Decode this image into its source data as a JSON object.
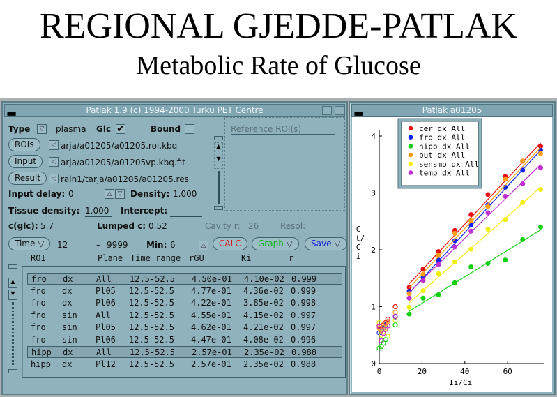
{
  "page": {
    "title": "REGIONAL GJEDDE-PATLAK",
    "subtitle": "Metabolic Rate of Glucose"
  },
  "main_window": {
    "title": "Patlak 1.9  (c) 1994-2000 Turku PET Centre",
    "type_label": "Type",
    "type_value": "plasma",
    "glc_label": "Glc",
    "glc_checked": true,
    "glc_check": "✔",
    "bound_label": "Bound",
    "bound_checked": false,
    "reference_label": "Reference ROI(s)",
    "rois_button": "ROIs",
    "rois_file": "arja/a01205/a01205.roi.kbq",
    "input_button": "Input",
    "input_file": "arja/a01205/a01205vp.kbq.fit",
    "result_button": "Result",
    "result_file": "rain1/tarja/a01205/a01205.res",
    "input_delay_label": "Input delay:",
    "input_delay": "0",
    "density_label": "Density:",
    "density": "1.000",
    "tissue_density_label": "Tissue density:",
    "tissue_density": "1.000",
    "intercept_label": "Intercept:",
    "intercept": "",
    "cglc_label": "c(glc):",
    "cglc": "5.7",
    "lumped_label": "Lumped c:",
    "lumped": "0.52",
    "cavity_label": "Cavity r:",
    "cavity": "26",
    "resol_label": "Resol:",
    "resol": "",
    "time_button": "Time",
    "time_start": "12",
    "time_dash": "–",
    "time_end": "9999",
    "min_label": "Min:",
    "min": "6",
    "calc_button": "CALC",
    "graph_button": "Graph",
    "save_button": "Save",
    "colors": {
      "calc": "#e8141c",
      "graph": "#13b51c",
      "save": "#1521e0"
    },
    "columns": [
      "ROI",
      "Plane",
      "Time range",
      "rGU",
      "Ki",
      "r"
    ],
    "rows": [
      {
        "roi": "fro",
        "side": "dx",
        "plane": "All",
        "range": "12.5-52.5",
        "rgu": "4.50e-01",
        "ki": "4.10e-02",
        "r": "0.999",
        "selected": true
      },
      {
        "roi": "fro",
        "side": "dx",
        "plane": "Pl05",
        "range": "12.5-52.5",
        "rgu": "4.77e-01",
        "ki": "4.36e-02",
        "r": "0.999"
      },
      {
        "roi": "fro",
        "side": "dx",
        "plane": "Pl06",
        "range": "12.5-52.5",
        "rgu": "4.22e-01",
        "ki": "3.85e-02",
        "r": "0.998"
      },
      {
        "roi": "fro",
        "side": "sin",
        "plane": "All",
        "range": "12.5-52.5",
        "rgu": "4.55e-01",
        "ki": "4.15e-02",
        "r": "0.997"
      },
      {
        "roi": "fro",
        "side": "sin",
        "plane": "Pl05",
        "range": "12.5-52.5",
        "rgu": "4.62e-01",
        "ki": "4.21e-02",
        "r": "0.997"
      },
      {
        "roi": "fro",
        "side": "sin",
        "plane": "Pl06",
        "range": "12.5-52.5",
        "rgu": "4.47e-01",
        "ki": "4.08e-02",
        "r": "0.996"
      },
      {
        "roi": "hipp",
        "side": "dx",
        "plane": "All",
        "range": "12.5-52.5",
        "rgu": "2.57e-01",
        "ki": "2.35e-02",
        "r": "0.988",
        "selected": true
      },
      {
        "roi": "hipp",
        "side": "dx",
        "plane": "Pl12",
        "range": "12.5-52.5",
        "rgu": "2.57e-01",
        "ki": "2.35e-02",
        "r": "0.988"
      }
    ]
  },
  "plot_window": {
    "title": "Patlak a01205"
  },
  "chart_data": {
    "type": "scatter",
    "xlabel": "Ii/Ci",
    "ylabel": "Ct/Ci",
    "xlim": [
      0,
      78
    ],
    "ylim": [
      0,
      4.1
    ],
    "xticks": [
      "0",
      "20",
      "40",
      "60"
    ],
    "yticks": [
      "0",
      "1",
      "2",
      "3",
      "4"
    ],
    "legend_position": "top-left",
    "x": [
      14.0,
      20.5,
      27.7,
      35.3,
      42.9,
      50.8,
      58.9,
      67.0,
      75.4
    ],
    "early_x": [
      0,
      1,
      2,
      3,
      4,
      7.5
    ],
    "series": [
      {
        "name": "cer dx All",
        "color": "#e81010",
        "values": [
          1.34,
          1.66,
          1.97,
          2.34,
          2.62,
          2.97,
          3.29,
          3.56,
          3.82
        ],
        "early": [
          0.66,
          0.6,
          0.68,
          0.72,
          0.78,
          1.0
        ],
        "fit": [
          1.4,
          3.88
        ]
      },
      {
        "name": "fro dx All",
        "color": "#1020f0",
        "values": [
          1.27,
          1.51,
          1.82,
          2.16,
          2.44,
          2.79,
          3.1,
          3.4,
          3.75
        ],
        "early": [
          0.54,
          0.58,
          0.62,
          0.68,
          0.74,
          0.82
        ],
        "fit": [
          1.24,
          3.75
        ]
      },
      {
        "name": "hipp dx All",
        "color": "#10d010",
        "values": [
          0.87,
          1.15,
          1.21,
          1.42,
          1.7,
          1.76,
          1.82,
          2.18,
          2.4
        ],
        "early": [
          0.27,
          0.3,
          0.36,
          0.42,
          0.48,
          0.68
        ],
        "fit": [
          0.92,
          2.35
        ]
      },
      {
        "name": "put dx All",
        "color": "#ffa010",
        "values": [
          1.23,
          1.57,
          1.9,
          2.29,
          2.51,
          2.76,
          3.24,
          3.56,
          3.69
        ],
        "early": [
          0.62,
          0.58,
          0.64,
          0.7,
          0.74,
          0.9
        ],
        "fit": [
          1.33,
          3.8
        ]
      },
      {
        "name": "sensmo dx All",
        "color": "#f0f010",
        "values": [
          0.99,
          1.28,
          1.58,
          1.79,
          2.01,
          2.36,
          2.53,
          2.83,
          3.06
        ],
        "early": [
          0.72,
          0.5,
          0.56,
          0.62,
          0.48,
          0.76
        ],
        "fit": [
          1.07,
          3.1
        ]
      },
      {
        "name": "temp dx All",
        "color": "#c030d0",
        "values": [
          1.15,
          1.46,
          1.74,
          2.05,
          2.33,
          2.65,
          2.94,
          3.16,
          3.44
        ],
        "early": [
          0.65,
          0.4,
          0.53,
          0.6,
          0.66,
          0.83
        ],
        "fit": [
          1.25,
          3.5
        ]
      }
    ]
  }
}
